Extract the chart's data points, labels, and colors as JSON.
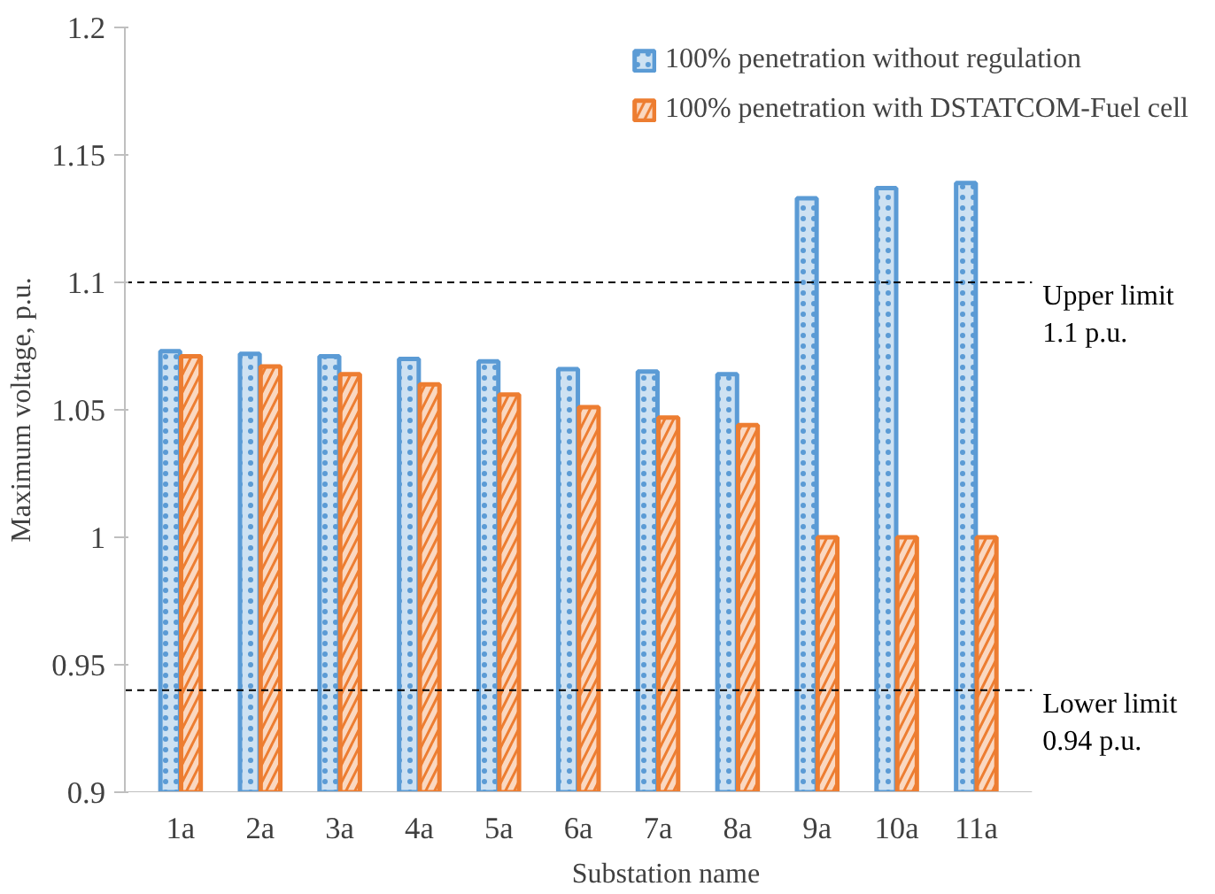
{
  "chart_data": {
    "type": "bar",
    "xlabel": "Substation name",
    "ylabel": "Maximum voltage, p.u.",
    "categories": [
      "1a",
      "2a",
      "3a",
      "4a",
      "5a",
      "6a",
      "7a",
      "8a",
      "9a",
      "10a",
      "11a"
    ],
    "series": [
      {
        "name": "100% penetration without regulation",
        "color": "#5b9bd5",
        "values": [
          1.073,
          1.072,
          1.071,
          1.07,
          1.069,
          1.066,
          1.065,
          1.064,
          1.133,
          1.137,
          1.139
        ]
      },
      {
        "name": "100% penetration with DSTATCOM-Fuel cell",
        "color": "#ed7d31",
        "values": [
          1.071,
          1.067,
          1.064,
          1.06,
          1.056,
          1.051,
          1.047,
          1.044,
          1.0,
          1.0,
          1.0
        ]
      }
    ],
    "ylim": [
      0.9,
      1.2
    ],
    "yticks": [
      0.9,
      0.95,
      {
        "value": 1,
        "label": "1"
      },
      1.05,
      1.1,
      1.15,
      1.2
    ],
    "ref_lines": [
      {
        "axis": "y",
        "value": 1.1,
        "label": "Upper limit\n1.1 p.u.",
        "color": "#000000",
        "line_style": "dashed"
      },
      {
        "axis": "y",
        "value": 0.94,
        "label": "Lower limit\n0.94 p.u.",
        "color": "#000000",
        "line_style": "dashed"
      }
    ],
    "grid": false,
    "legend": "top right"
  }
}
